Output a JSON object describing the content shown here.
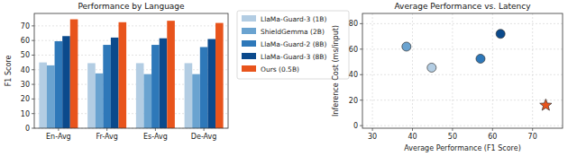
{
  "chart_data": [
    {
      "type": "bar",
      "title": "Performance by Language",
      "y_label": "F1 Score",
      "categories": [
        "En-Avg",
        "Fr-Avg",
        "Es-Avg",
        "De-Avg"
      ],
      "series": [
        {
          "name": "LlaMa-Guard-3 (1B)",
          "color": "#b3cde3",
          "values": [
            45,
            44.5,
            44.5,
            44.5
          ]
        },
        {
          "name": "ShieldGemma (2B)",
          "color": "#6aa3d0",
          "values": [
            43,
            37.5,
            37,
            37
          ]
        },
        {
          "name": "LlaMa-Guard-2 (8B)",
          "color": "#2e78b9",
          "values": [
            59.5,
            57,
            57,
            55.5
          ]
        },
        {
          "name": "LlaMa-Guard-3 (8B)",
          "color": "#0b4a8c",
          "values": [
            63,
            62,
            61.5,
            61
          ]
        },
        {
          "name": "Ours (0.5B)",
          "color": "#e8541c",
          "values": [
            74.5,
            72.5,
            73.5,
            72
          ]
        }
      ],
      "ylim": [
        0,
        78.5
      ],
      "yticks": [
        0,
        10,
        20,
        30,
        40,
        50,
        60,
        70
      ],
      "grid": true,
      "legend": "right"
    },
    {
      "type": "scatter",
      "title": "Average Performance vs. Latency",
      "x_label": "Average Performance (F1 Score)",
      "y_label": "Inference Cost (ms/input)",
      "series": [
        {
          "x": [
            38.5,
            44.8,
            57,
            62
          ],
          "values": [
            62,
            45.5,
            52.5,
            72
          ],
          "colors": [
            "#6aa3d0",
            "#b3cde3",
            "#2e78b9",
            "#0b4a8c"
          ],
          "marker": "circle"
        },
        {
          "x": [
            73.3
          ],
          "values": [
            16
          ],
          "color": "#e8541c",
          "marker": "star"
        }
      ],
      "xlim": [
        27.5,
        77.5
      ],
      "xticks": [
        30,
        40,
        50,
        60,
        70
      ],
      "ylim": [
        -2,
        88
      ],
      "yticks": [
        0,
        20,
        40,
        60,
        80
      ],
      "grid": true
    }
  ]
}
